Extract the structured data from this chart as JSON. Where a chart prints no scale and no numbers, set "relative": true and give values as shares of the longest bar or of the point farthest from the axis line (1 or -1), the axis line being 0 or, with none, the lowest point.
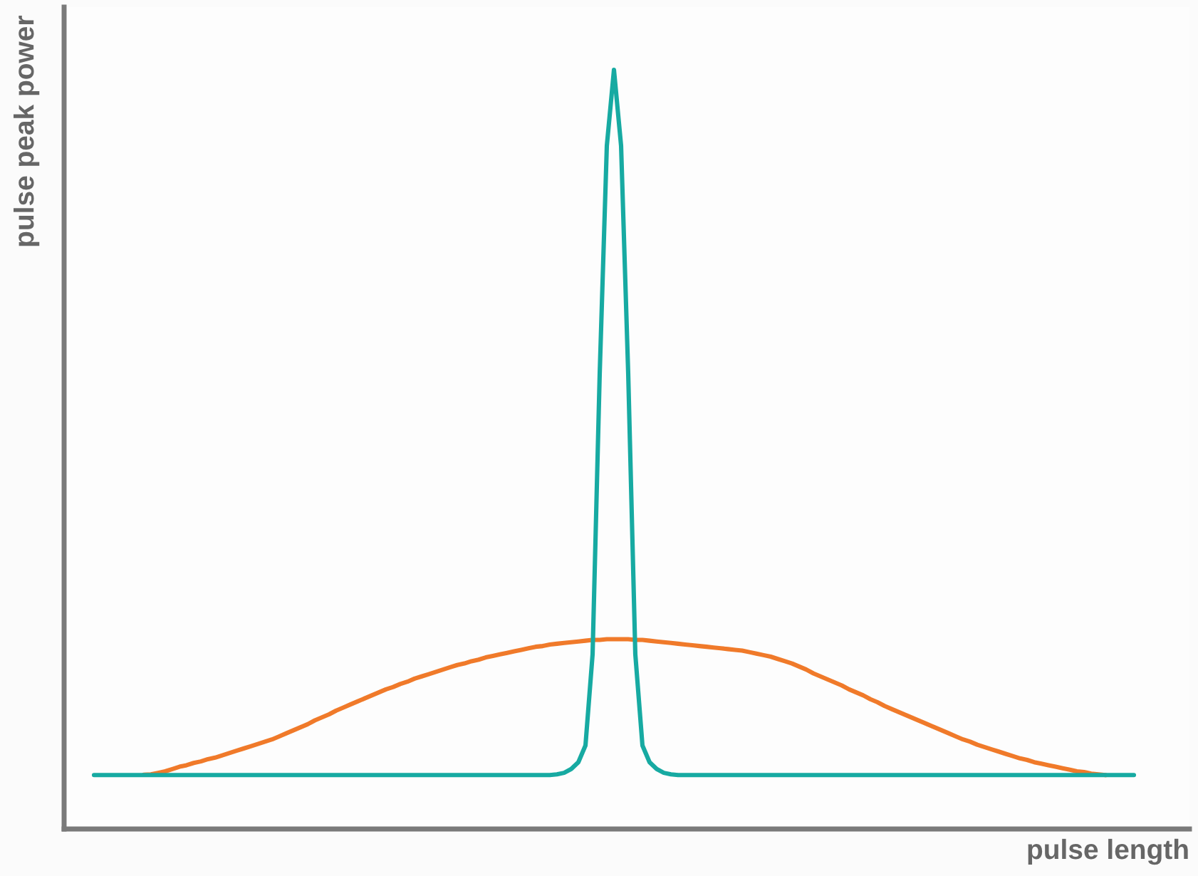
{
  "chart_data": {
    "type": "line",
    "xlabel": "pulse length",
    "ylabel": "pulse peak power",
    "relative": true,
    "tick_labels": false,
    "categories": [
      null,
      null,
      null,
      null,
      null,
      null,
      null,
      null,
      null,
      null,
      null,
      null,
      null,
      null,
      null,
      null,
      null,
      null,
      null,
      null,
      null,
      null,
      null,
      null,
      null,
      null,
      null,
      null,
      null,
      null,
      null,
      null,
      null,
      null,
      null,
      null,
      null,
      null,
      null,
      null,
      null,
      null,
      null,
      null,
      null,
      null,
      null,
      null,
      null,
      null,
      null,
      null,
      null,
      null,
      null,
      null,
      null,
      null,
      null,
      null,
      null,
      null,
      null,
      null,
      null,
      null,
      null,
      null,
      null,
      null,
      null,
      null,
      null,
      null,
      null,
      null,
      null,
      null,
      null,
      null,
      null,
      null,
      null,
      null,
      null,
      null,
      null,
      null,
      null,
      null,
      null,
      null,
      null,
      null,
      null,
      null,
      null,
      null,
      null,
      null,
      null,
      null,
      null,
      null,
      null,
      null,
      null,
      null,
      null,
      null,
      null,
      null,
      null,
      null,
      null,
      null,
      null,
      null,
      null,
      null,
      null,
      null,
      null,
      null,
      null,
      null,
      null,
      null,
      null,
      null,
      null,
      null,
      null,
      null,
      null,
      null,
      null,
      null,
      null,
      null,
      null,
      null,
      null,
      null,
      null,
      null,
      null
    ],
    "series": [
      {
        "color": "#f07a2a",
        "values": [
          null,
          null,
          null,
          null,
          null,
          null,
          null,
          0.0715,
          0.072,
          0.074,
          0.076,
          0.079,
          0.082,
          0.084,
          0.087,
          0.089,
          0.092,
          0.094,
          0.097,
          0.1,
          0.103,
          0.106,
          0.109,
          0.112,
          0.115,
          0.118,
          0.122,
          0.126,
          0.13,
          0.134,
          0.138,
          0.143,
          0.147,
          0.151,
          0.156,
          0.16,
          0.164,
          0.168,
          0.172,
          0.176,
          0.18,
          0.184,
          0.187,
          0.191,
          0.194,
          0.198,
          0.201,
          0.204,
          0.207,
          0.21,
          0.213,
          0.216,
          0.218,
          0.221,
          0.223,
          0.226,
          0.228,
          0.23,
          0.232,
          0.234,
          0.236,
          0.238,
          0.24,
          0.241,
          0.243,
          0.244,
          0.245,
          0.246,
          0.247,
          0.248,
          0.249,
          0.249,
          0.25,
          0.25,
          0.25,
          0.25,
          0.249,
          0.249,
          0.248,
          0.247,
          0.246,
          0.245,
          0.244,
          0.243,
          0.242,
          0.241,
          0.24,
          0.239,
          0.238,
          0.237,
          0.236,
          0.235,
          0.233,
          0.231,
          0.229,
          0.227,
          0.224,
          0.221,
          0.218,
          0.214,
          0.21,
          0.205,
          0.201,
          0.197,
          0.193,
          0.189,
          0.184,
          0.18,
          0.176,
          0.171,
          0.167,
          0.162,
          0.158,
          0.154,
          0.15,
          0.146,
          0.142,
          0.138,
          0.134,
          0.13,
          0.126,
          0.122,
          0.118,
          0.115,
          0.111,
          0.108,
          0.105,
          0.102,
          0.099,
          0.096,
          0.093,
          0.091,
          0.088,
          0.086,
          0.084,
          0.082,
          0.08,
          0.078,
          0.076,
          0.075,
          0.073,
          0.072,
          0.071,
          null,
          null,
          null,
          null
        ]
      },
      {
        "color": "#17aaa2",
        "values": [
          0.071,
          0.071,
          0.071,
          0.071,
          0.071,
          0.071,
          0.071,
          0.071,
          0.071,
          0.071,
          0.071,
          0.071,
          0.071,
          0.071,
          0.071,
          0.071,
          0.071,
          0.071,
          0.071,
          0.071,
          0.071,
          0.071,
          0.071,
          0.071,
          0.071,
          0.071,
          0.071,
          0.071,
          0.071,
          0.071,
          0.071,
          0.071,
          0.071,
          0.071,
          0.071,
          0.071,
          0.071,
          0.071,
          0.071,
          0.071,
          0.071,
          0.071,
          0.071,
          0.071,
          0.071,
          0.071,
          0.071,
          0.071,
          0.071,
          0.071,
          0.071,
          0.071,
          0.071,
          0.071,
          0.071,
          0.071,
          0.071,
          0.071,
          0.071,
          0.071,
          0.071,
          0.071,
          0.071,
          0.071,
          0.071,
          0.072,
          0.074,
          0.079,
          0.088,
          0.11,
          0.23,
          0.6,
          0.9,
          1.0,
          0.9,
          0.6,
          0.23,
          0.11,
          0.088,
          0.079,
          0.074,
          0.072,
          0.071,
          0.071,
          0.071,
          0.071,
          0.071,
          0.071,
          0.071,
          0.071,
          0.071,
          0.071,
          0.071,
          0.071,
          0.071,
          0.071,
          0.071,
          0.071,
          0.071,
          0.071,
          0.071,
          0.071,
          0.071,
          0.071,
          0.071,
          0.071,
          0.071,
          0.071,
          0.071,
          0.071,
          0.071,
          0.071,
          0.071,
          0.071,
          0.071,
          0.071,
          0.071,
          0.071,
          0.071,
          0.071,
          0.071,
          0.071,
          0.071,
          0.071,
          0.071,
          0.071,
          0.071,
          0.071,
          0.071,
          0.071,
          0.071,
          0.071,
          0.071,
          0.071,
          0.071,
          0.071,
          0.071,
          0.071,
          0.071,
          0.071,
          0.071,
          0.071,
          0.071,
          0.071,
          0.071,
          0.071,
          0.071
        ]
      }
    ]
  }
}
